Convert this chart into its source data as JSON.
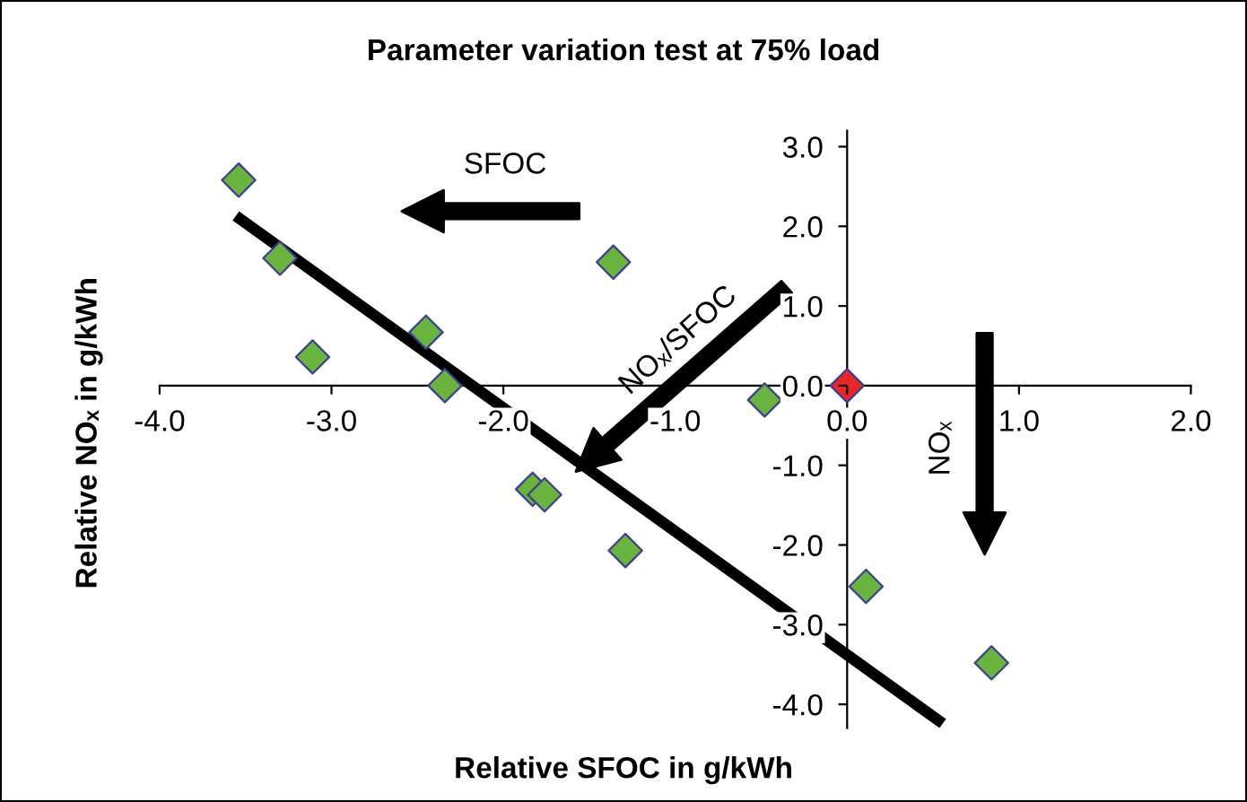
{
  "chart_data": {
    "type": "scatter",
    "title": "Parameter variation test at 75% load",
    "xlabel": "Relative SFOC in g/kWh",
    "ylabel": "Relative NOₓ in g/kWh",
    "annotations": [
      "SFOC",
      "NOₓ/SFOC",
      "NOₓ"
    ],
    "xlim": [
      -4.0,
      2.0
    ],
    "ylim": [
      -4.3,
      3.2
    ],
    "xticks": [
      {
        "value": -4,
        "label": "-4.0"
      },
      {
        "value": -3,
        "label": "-3.0"
      },
      {
        "value": -2,
        "label": "-2.0"
      },
      {
        "value": -1,
        "label": "-1.0"
      },
      {
        "value": 0,
        "label": "0.0"
      },
      {
        "value": 1,
        "label": "1.0"
      },
      {
        "value": 2,
        "label": "2.0"
      }
    ],
    "yticks": [
      {
        "value": -4,
        "label": "-4.0"
      },
      {
        "value": -3,
        "label": "-3.0"
      },
      {
        "value": -2,
        "label": "-2.0"
      },
      {
        "value": -1,
        "label": "-1.0"
      },
      {
        "value": 0,
        "label": "0.0"
      },
      {
        "value": 1,
        "label": "1.0"
      },
      {
        "value": 2,
        "label": "2.0"
      },
      {
        "value": 3,
        "label": "3.0"
      }
    ],
    "grid": false,
    "marker": "diamond",
    "series": [
      {
        "x": [
          -3.54,
          -3.3,
          -3.11,
          -2.45,
          -2.34,
          -1.83,
          -1.76,
          -1.36,
          -1.29,
          -0.48,
          0.0,
          0.11,
          0.84
        ],
        "values": [
          2.58,
          1.6,
          0.36,
          0.67,
          0.0,
          -1.3,
          -1.37,
          1.55,
          -2.07,
          -0.18,
          0.0,
          -2.52,
          -3.48
        ],
        "colors": [
          "#6ab33e",
          "#6ab33e",
          "#6ab33e",
          "#6ab33e",
          "#6ab33e",
          "#6ab33e",
          "#6ab33e",
          "#6ab33e",
          "#6ab33e",
          "#6ab33e",
          "#e8262a",
          "#6ab33e",
          "#6ab33e"
        ]
      },
      {
        "type": "line",
        "marker": "none",
        "color": "#000000",
        "x": [
          -3.53,
          0.53
        ],
        "values": [
          2.09,
          -4.2
        ]
      }
    ]
  }
}
